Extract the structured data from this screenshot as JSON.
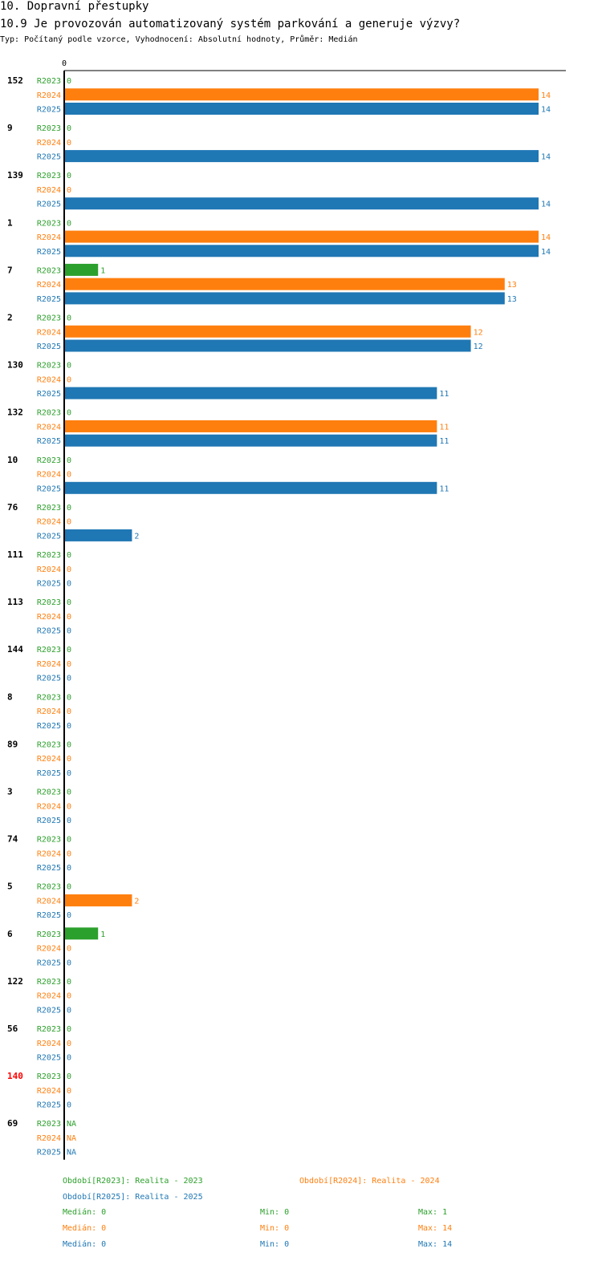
{
  "header": {
    "section_title": "10. Dopravní přestupky",
    "question_title": "10.9 Je provozován automatizovaný systém parkování a generuje výzvy?",
    "subtitle": "Typ: Počítaný podle vzorce, Vyhodnocení: Absolutní hodnoty, Průměr: Medián"
  },
  "colors": {
    "R2023": "#2ca02c",
    "R2024": "#ff7f0e",
    "R2025": "#1f77b4",
    "highlight": "#ff0000"
  },
  "chart_data": {
    "type": "bar",
    "orientation": "horizontal",
    "axis_zero_label": "0",
    "xlim": [
      0,
      14
    ],
    "series_names": [
      "R2023",
      "R2024",
      "R2025"
    ],
    "groups": [
      {
        "label": "152",
        "highlight": false,
        "values": [
          0,
          14,
          14
        ],
        "labels": [
          "0",
          "14",
          "14"
        ]
      },
      {
        "label": "9",
        "highlight": false,
        "values": [
          0,
          0,
          14
        ],
        "labels": [
          "0",
          "0",
          "14"
        ]
      },
      {
        "label": "139",
        "highlight": false,
        "values": [
          0,
          0,
          14
        ],
        "labels": [
          "0",
          "0",
          "14"
        ]
      },
      {
        "label": "1",
        "highlight": false,
        "values": [
          0,
          14,
          14
        ],
        "labels": [
          "0",
          "14",
          "14"
        ]
      },
      {
        "label": "7",
        "highlight": false,
        "values": [
          1,
          13,
          13
        ],
        "labels": [
          "1",
          "13",
          "13"
        ]
      },
      {
        "label": "2",
        "highlight": false,
        "values": [
          0,
          12,
          12
        ],
        "labels": [
          "0",
          "12",
          "12"
        ]
      },
      {
        "label": "130",
        "highlight": false,
        "values": [
          0,
          0,
          11
        ],
        "labels": [
          "0",
          "0",
          "11"
        ]
      },
      {
        "label": "132",
        "highlight": false,
        "values": [
          0,
          11,
          11
        ],
        "labels": [
          "0",
          "11",
          "11"
        ]
      },
      {
        "label": "10",
        "highlight": false,
        "values": [
          0,
          0,
          11
        ],
        "labels": [
          "0",
          "0",
          "11"
        ]
      },
      {
        "label": "76",
        "highlight": false,
        "values": [
          0,
          0,
          2
        ],
        "labels": [
          "0",
          "0",
          "2"
        ]
      },
      {
        "label": "111",
        "highlight": false,
        "values": [
          0,
          0,
          0
        ],
        "labels": [
          "0",
          "0",
          "0"
        ]
      },
      {
        "label": "113",
        "highlight": false,
        "values": [
          0,
          0,
          0
        ],
        "labels": [
          "0",
          "0",
          "0"
        ]
      },
      {
        "label": "144",
        "highlight": false,
        "values": [
          0,
          0,
          0
        ],
        "labels": [
          "0",
          "0",
          "0"
        ]
      },
      {
        "label": "8",
        "highlight": false,
        "values": [
          0,
          0,
          0
        ],
        "labels": [
          "0",
          "0",
          "0"
        ]
      },
      {
        "label": "89",
        "highlight": false,
        "values": [
          0,
          0,
          0
        ],
        "labels": [
          "0",
          "0",
          "0"
        ]
      },
      {
        "label": "3",
        "highlight": false,
        "values": [
          0,
          0,
          0
        ],
        "labels": [
          "0",
          "0",
          "0"
        ]
      },
      {
        "label": "74",
        "highlight": false,
        "values": [
          0,
          0,
          0
        ],
        "labels": [
          "0",
          "0",
          "0"
        ]
      },
      {
        "label": "5",
        "highlight": false,
        "values": [
          0,
          2,
          0
        ],
        "labels": [
          "0",
          "2",
          "0"
        ]
      },
      {
        "label": "6",
        "highlight": false,
        "values": [
          1,
          0,
          0
        ],
        "labels": [
          "1",
          "0",
          "0"
        ]
      },
      {
        "label": "122",
        "highlight": false,
        "values": [
          0,
          0,
          0
        ],
        "labels": [
          "0",
          "0",
          "0"
        ]
      },
      {
        "label": "56",
        "highlight": false,
        "values": [
          0,
          0,
          0
        ],
        "labels": [
          "0",
          "0",
          "0"
        ]
      },
      {
        "label": "140",
        "highlight": true,
        "values": [
          0,
          0,
          0
        ],
        "labels": [
          "0",
          "0",
          "0"
        ]
      },
      {
        "label": "69",
        "highlight": false,
        "values": [
          null,
          null,
          null
        ],
        "labels": [
          "NA",
          "NA",
          "NA"
        ]
      }
    ]
  },
  "legend": [
    {
      "series": "R2023",
      "text": "Období[R2023]: Realita - 2023"
    },
    {
      "series": "R2024",
      "text": "Období[R2024]: Realita - 2024"
    },
    {
      "series": "R2025",
      "text": "Období[R2025]: Realita - 2025"
    }
  ],
  "stats": [
    {
      "series": "R2023",
      "median": "Medián: 0",
      "min": "Min: 0",
      "max": "Max: 1"
    },
    {
      "series": "R2024",
      "median": "Medián: 0",
      "min": "Min: 0",
      "max": "Max: 14"
    },
    {
      "series": "R2025",
      "median": "Medián: 0",
      "min": "Min: 0",
      "max": "Max: 14"
    }
  ]
}
